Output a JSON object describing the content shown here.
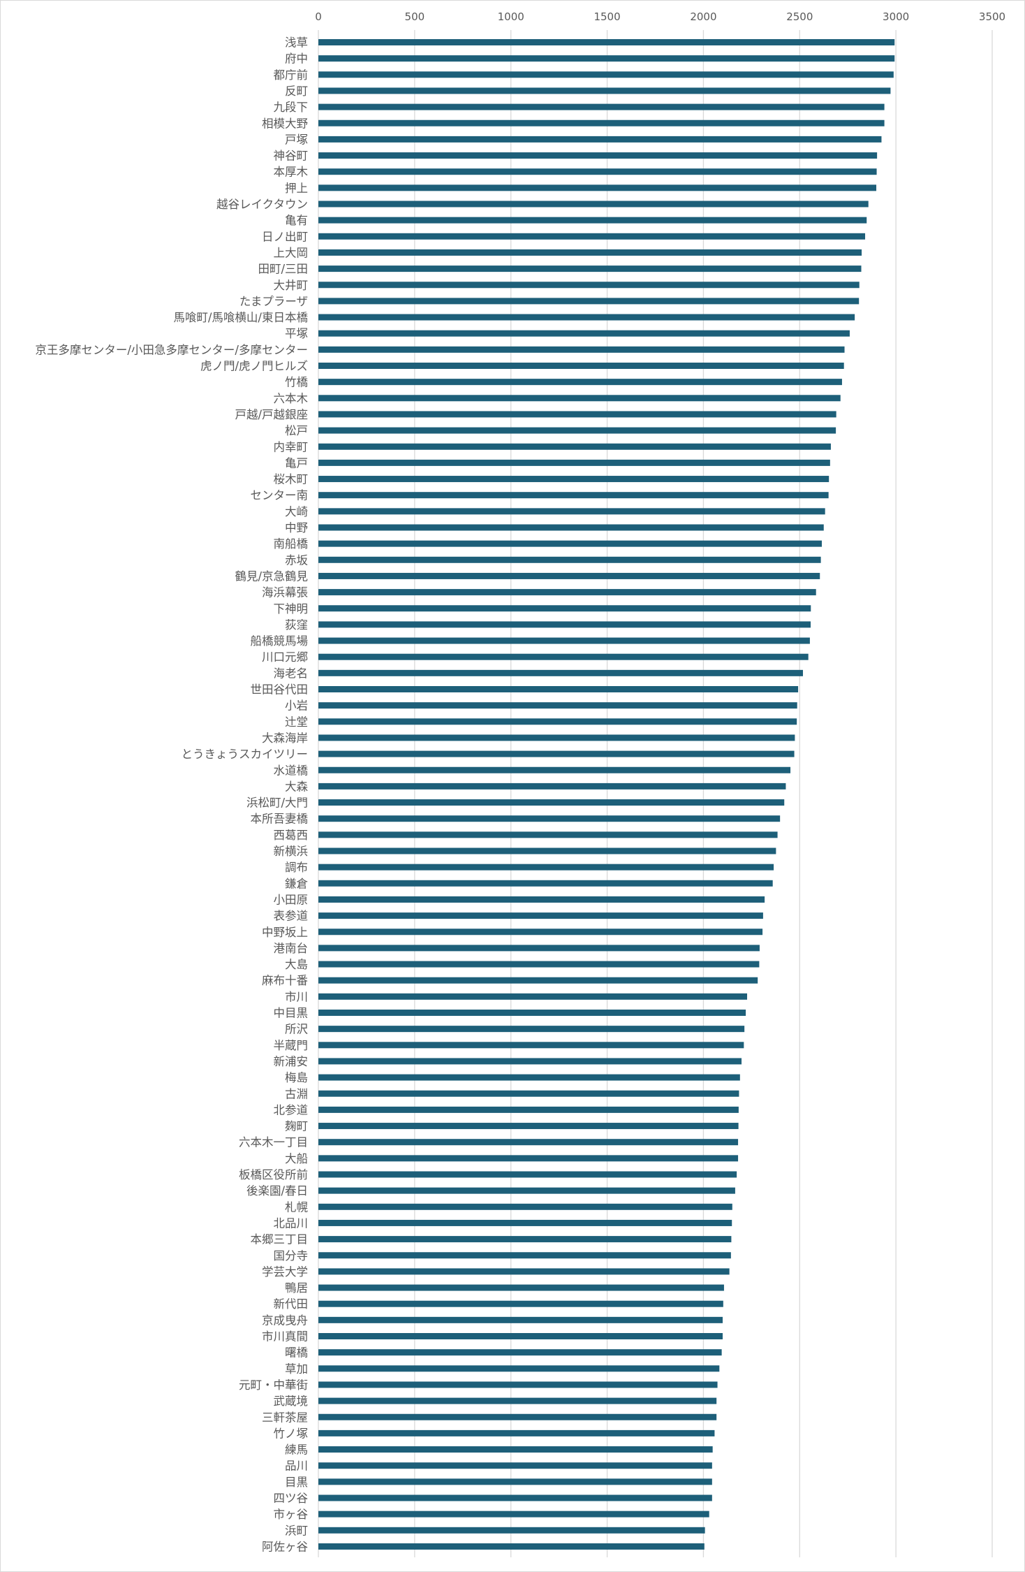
{
  "chart_data": {
    "type": "bar",
    "orientation": "horizontal",
    "title": "",
    "xlabel": "",
    "ylabel": "",
    "xlim": [
      0,
      3500
    ],
    "x_ticks": [
      0,
      500,
      1000,
      1500,
      2000,
      2500,
      3000,
      3500
    ],
    "x_axis_position": "top",
    "grid": true,
    "legend": "none",
    "colors": {
      "bar": "#1d5f79",
      "grid": "#d9d9d9",
      "text": "#595959"
    },
    "categories": [
      "浅草",
      "府中",
      "都庁前",
      "反町",
      "九段下",
      "相模大野",
      "戸塚",
      "神谷町",
      "本厚木",
      "押上",
      "越谷レイクタウン",
      "亀有",
      "日ノ出町",
      "上大岡",
      "田町/三田",
      "大井町",
      "たまプラーザ",
      "馬喰町/馬喰横山/東日本橋",
      "平塚",
      "京王多摩センター/小田急多摩センター/多摩センター",
      "虎ノ門/虎ノ門ヒルズ",
      "竹橋",
      "六本木",
      "戸越/戸越銀座",
      "松戸",
      "内幸町",
      "亀戸",
      "桜木町",
      "センター南",
      "大崎",
      "中野",
      "南船橋",
      "赤坂",
      "鶴見/京急鶴見",
      "海浜幕張",
      "下神明",
      "荻窪",
      "船橋競馬場",
      "川口元郷",
      "海老名",
      "世田谷代田",
      "小岩",
      "辻堂",
      "大森海岸",
      "とうきょうスカイツリー",
      "水道橋",
      "大森",
      "浜松町/大門",
      "本所吾妻橋",
      "西葛西",
      "新横浜",
      "調布",
      "鎌倉",
      "小田原",
      "表参道",
      "中野坂上",
      "港南台",
      "大島",
      "麻布十番",
      "市川",
      "中目黒",
      "所沢",
      "半蔵門",
      "新浦安",
      "梅島",
      "古淵",
      "北参道",
      "麹町",
      "六本木一丁目",
      "大船",
      "板橋区役所前",
      "後楽園/春日",
      "札幌",
      "北品川",
      "本郷三丁目",
      "国分寺",
      "学芸大学",
      "鴨居",
      "新代田",
      "京成曳舟",
      "市川真間",
      "曙橋",
      "草加",
      "元町・中華街",
      "武蔵境",
      "三軒茶屋",
      "竹ノ塚",
      "練馬",
      "品川",
      "目黒",
      "四ツ谷",
      "市ヶ谷",
      "浜町",
      "阿佐ヶ谷"
    ],
    "values": [
      2993,
      2993,
      2988,
      2972,
      2940,
      2940,
      2925,
      2902,
      2900,
      2898,
      2857,
      2848,
      2840,
      2822,
      2820,
      2810,
      2808,
      2786,
      2760,
      2733,
      2730,
      2720,
      2712,
      2690,
      2688,
      2662,
      2658,
      2652,
      2650,
      2632,
      2625,
      2615,
      2610,
      2605,
      2585,
      2558,
      2557,
      2553,
      2545,
      2517,
      2492,
      2487,
      2485,
      2475,
      2472,
      2452,
      2428,
      2420,
      2398,
      2385,
      2377,
      2365,
      2360,
      2318,
      2310,
      2307,
      2292,
      2290,
      2282,
      2227,
      2220,
      2213,
      2210,
      2198,
      2190,
      2185,
      2183,
      2182,
      2180,
      2180,
      2173,
      2165,
      2150,
      2148,
      2145,
      2143,
      2135,
      2107,
      2103,
      2100,
      2100,
      2095,
      2083,
      2073,
      2068,
      2068,
      2058,
      2048,
      2045,
      2045,
      2045,
      2030,
      2008,
      2005
    ]
  }
}
